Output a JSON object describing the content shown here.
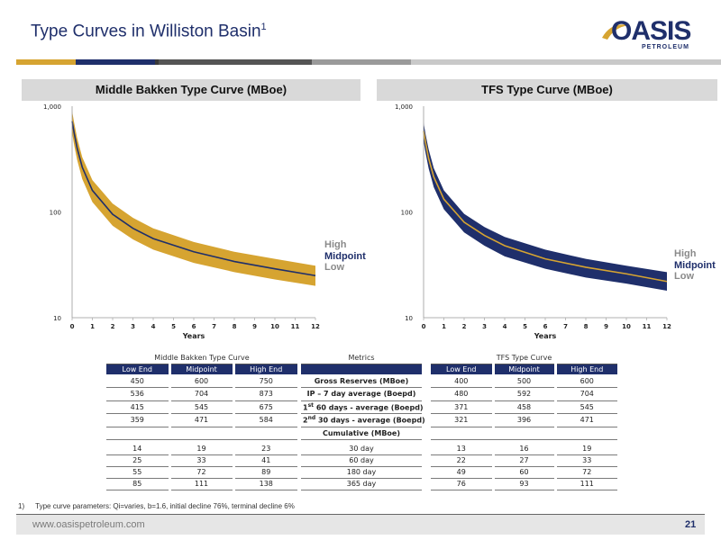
{
  "title": {
    "text": "Type Curves in Williston Basin",
    "sup": "1"
  },
  "logo": {
    "word": "OASIS",
    "sub": "PETROLEUM"
  },
  "top_bar_colors": [
    "#d6a431",
    "#1f2f6b",
    "#3a3a3a",
    "#555555",
    "#9a9a9a",
    "#c9c9c9"
  ],
  "colors": {
    "navy": "#1f2f6b",
    "gold": "#d6a431"
  },
  "chart_data": [
    {
      "type": "area",
      "title": "Middle Bakken Type Curve (MBoe)",
      "xlabel": "Years",
      "ylabel": "",
      "xlim": [
        0,
        12
      ],
      "ylim": [
        10,
        1000
      ],
      "yscale": "log",
      "x_ticks": [
        "0",
        "1",
        "2",
        "3",
        "4",
        "5",
        "6",
        "7",
        "8",
        "9",
        "10",
        "11",
        "12"
      ],
      "y_ticks": [
        "10",
        "100",
        "1,000"
      ],
      "band_color": "#d6a431",
      "line_color": "#1f2f6b",
      "series": [
        {
          "name": "High",
          "x": [
            0,
            0.1,
            0.25,
            0.5,
            1,
            2,
            3,
            4,
            6,
            8,
            10,
            12
          ],
          "y": [
            900,
            700,
            500,
            330,
            200,
            120,
            88,
            70,
            52,
            42,
            36,
            31
          ]
        },
        {
          "name": "Midpoint",
          "x": [
            0,
            0.1,
            0.25,
            0.5,
            1,
            2,
            3,
            4,
            6,
            8,
            10,
            12
          ],
          "y": [
            720,
            560,
            400,
            265,
            160,
            95,
            70,
            56,
            42,
            34,
            29,
            25
          ]
        },
        {
          "name": "Low",
          "x": [
            0,
            0.1,
            0.25,
            0.5,
            1,
            2,
            3,
            4,
            6,
            8,
            10,
            12
          ],
          "y": [
            560,
            430,
            310,
            205,
            124,
            74,
            55,
            44,
            33,
            27,
            23,
            20
          ]
        }
      ],
      "legend": [
        "High",
        "Midpoint",
        "Low"
      ]
    },
    {
      "type": "area",
      "title": "TFS Type Curve (MBoe)",
      "xlabel": "Years",
      "ylabel": "",
      "xlim": [
        0,
        12
      ],
      "ylim": [
        10,
        1000
      ],
      "yscale": "log",
      "x_ticks": [
        "0",
        "1",
        "2",
        "3",
        "4",
        "5",
        "6",
        "7",
        "8",
        "9",
        "10",
        "11",
        "12"
      ],
      "y_ticks": [
        "10",
        "100",
        "1,000"
      ],
      "band_color": "#1f2f6b",
      "line_color": "#d6a431",
      "series": [
        {
          "name": "High",
          "x": [
            0,
            0.1,
            0.25,
            0.5,
            1,
            2,
            3,
            4,
            6,
            8,
            10,
            12
          ],
          "y": [
            700,
            540,
            390,
            260,
            160,
            96,
            72,
            58,
            44,
            36,
            31,
            27
          ]
        },
        {
          "name": "Midpoint",
          "x": [
            0,
            0.1,
            0.25,
            0.5,
            1,
            2,
            3,
            4,
            6,
            8,
            10,
            12
          ],
          "y": [
            580,
            450,
            320,
            215,
            132,
            80,
            60,
            48,
            36,
            30,
            26,
            22
          ]
        },
        {
          "name": "Low",
          "x": [
            0,
            0.1,
            0.25,
            0.5,
            1,
            2,
            3,
            4,
            6,
            8,
            10,
            12
          ],
          "y": [
            470,
            360,
            258,
            172,
            106,
            64,
            48,
            38,
            29,
            24,
            21,
            18
          ]
        }
      ],
      "legend": [
        "High",
        "Midpoint",
        "Low"
      ]
    }
  ],
  "tables": {
    "mb": {
      "group": "Middle Bakken Type Curve",
      "headers": [
        "Low End",
        "Midpoint",
        "High End"
      ],
      "rows": [
        [
          "450",
          "600",
          "750"
        ],
        [
          "536",
          "704",
          "873"
        ],
        [
          "415",
          "545",
          "675"
        ],
        [
          "359",
          "471",
          "584"
        ]
      ],
      "cum_rows": [
        [
          "14",
          "19",
          "23"
        ],
        [
          "25",
          "33",
          "41"
        ],
        [
          "55",
          "72",
          "89"
        ],
        [
          "85",
          "111",
          "138"
        ]
      ]
    },
    "metrics": {
      "group": "Metrics",
      "rows": [
        "Gross Reserves (MBoe)",
        "IP – 7 day average (Boepd)",
        "1st 60 days - average (Boepd)",
        "2nd 30 days - average (Boepd)"
      ],
      "cum_header": "Cumulative (MBoe)",
      "cum_rows": [
        "30 day",
        "60 day",
        "180 day",
        "365 day"
      ]
    },
    "tfs": {
      "group": "TFS Type Curve",
      "headers": [
        "Low End",
        "Midpoint",
        "High End"
      ],
      "rows": [
        [
          "400",
          "500",
          "600"
        ],
        [
          "480",
          "592",
          "704"
        ],
        [
          "371",
          "458",
          "545"
        ],
        [
          "321",
          "396",
          "471"
        ]
      ],
      "cum_rows": [
        [
          "13",
          "16",
          "19"
        ],
        [
          "22",
          "27",
          "33"
        ],
        [
          "49",
          "60",
          "72"
        ],
        [
          "76",
          "93",
          "111"
        ]
      ]
    }
  },
  "footnote": {
    "num": "1)",
    "text": "Type curve parameters: Qi=varies, b=1.6, initial decline 76%, terminal decline 6%"
  },
  "footer": {
    "website": "www.oasispetroleum.com",
    "page": "21"
  }
}
